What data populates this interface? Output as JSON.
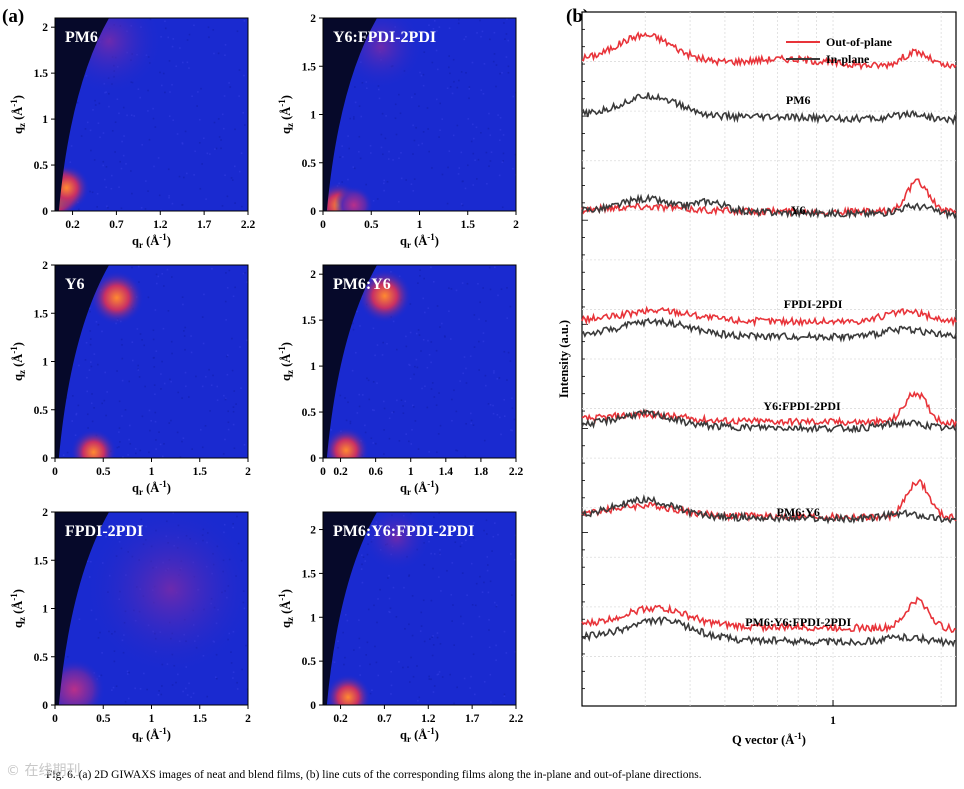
{
  "panel_a_label": "(a)",
  "panel_b_label": "(b)",
  "caption": "Fig. 6. (a) 2D GIWAXS images of neat and blend films, (b) line cuts of the corresponding films along the in-plane and out-of-plane directions.",
  "watermark": "© 在线期刊",
  "colors": {
    "out_of_plane": "#e8343a",
    "in_plane": "#3a3a3a",
    "map_bg": "#1a2ad0",
    "shadow": "#06092a"
  },
  "chart_data": [
    {
      "type": "heatmap",
      "title": "PM6",
      "xlabel": "q_r (Å^-1)",
      "ylabel": "q_z (Å^-1)",
      "xticks": [
        "0.2",
        "0.7",
        "1.2",
        "1.7",
        "2.2"
      ],
      "yticks": [
        "0",
        "0.5",
        "1",
        "1.5",
        "2"
      ],
      "xlim": [
        0,
        2.2
      ],
      "ylim": [
        0,
        2.1
      ]
    },
    {
      "type": "heatmap",
      "title": "Y6:FPDI-2PDI",
      "xlabel": "q_r (Å^-1)",
      "ylabel": "q_z (Å^-1)",
      "xticks": [
        "0",
        "0.5",
        "1",
        "1.5",
        "2"
      ],
      "yticks": [
        "0",
        "0.5",
        "1",
        "1.5",
        "2"
      ],
      "xlim": [
        0,
        2
      ],
      "ylim": [
        0,
        2
      ]
    },
    {
      "type": "heatmap",
      "title": "Y6",
      "xlabel": "q_r (Å^-1)",
      "ylabel": "q_z (Å^-1)",
      "xticks": [
        "0",
        "0.5",
        "1",
        "1.5",
        "2"
      ],
      "yticks": [
        "0",
        "0.5",
        "1",
        "1.5",
        "2"
      ],
      "xlim": [
        0,
        2
      ],
      "ylim": [
        0,
        2
      ]
    },
    {
      "type": "heatmap",
      "title": "PM6:Y6",
      "xlabel": "q_r (Å^-1)",
      "ylabel": "q_z (Å^-1)",
      "xticks": [
        "0",
        "0.2",
        "0.6",
        "1",
        "1.4",
        "1.8",
        "2.2"
      ],
      "yticks": [
        "0",
        "0.5",
        "1",
        "1.5",
        "2"
      ],
      "xlim": [
        0,
        2.2
      ],
      "ylim": [
        0,
        2.1
      ]
    },
    {
      "type": "heatmap",
      "title": "FPDI-2PDI",
      "xlabel": "q_r (Å^-1)",
      "ylabel": "q_z (Å^-1)",
      "xticks": [
        "0",
        "0.5",
        "1",
        "1.5",
        "2"
      ],
      "yticks": [
        "0",
        "0.5",
        "1",
        "1.5",
        "2"
      ],
      "xlim": [
        0,
        2
      ],
      "ylim": [
        0,
        2
      ]
    },
    {
      "type": "heatmap",
      "title": "PM6:Y6:FPDI-2PDI",
      "xlabel": "q_r (Å^-1)",
      "ylabel": "q_z (Å^-1)",
      "xticks": [
        "0.2",
        "0.7",
        "1.2",
        "1.7",
        "2.2"
      ],
      "yticks": [
        "0",
        "0.5",
        "1",
        "1.5",
        "2"
      ],
      "xlim": [
        0,
        2.2
      ],
      "ylim": [
        0,
        2.2
      ]
    },
    {
      "type": "line",
      "xlabel": "Q vector (Å^-1)",
      "ylabel": "Intensity (a.u.)",
      "x_scale": "log",
      "xticks": [
        "1"
      ],
      "xlim": [
        0.2,
        2.2
      ],
      "legend": {
        "position": "top-right",
        "entries": [
          "Out-of-plane",
          "In-plane"
        ]
      },
      "grid": true,
      "series_labels": [
        "PM6",
        "Y6",
        "FPDI-2PDI",
        "Y6:FPDI-2PDI",
        "PM6:Y6",
        "PM6:Y6:FPDI-2PDI"
      ]
    }
  ]
}
